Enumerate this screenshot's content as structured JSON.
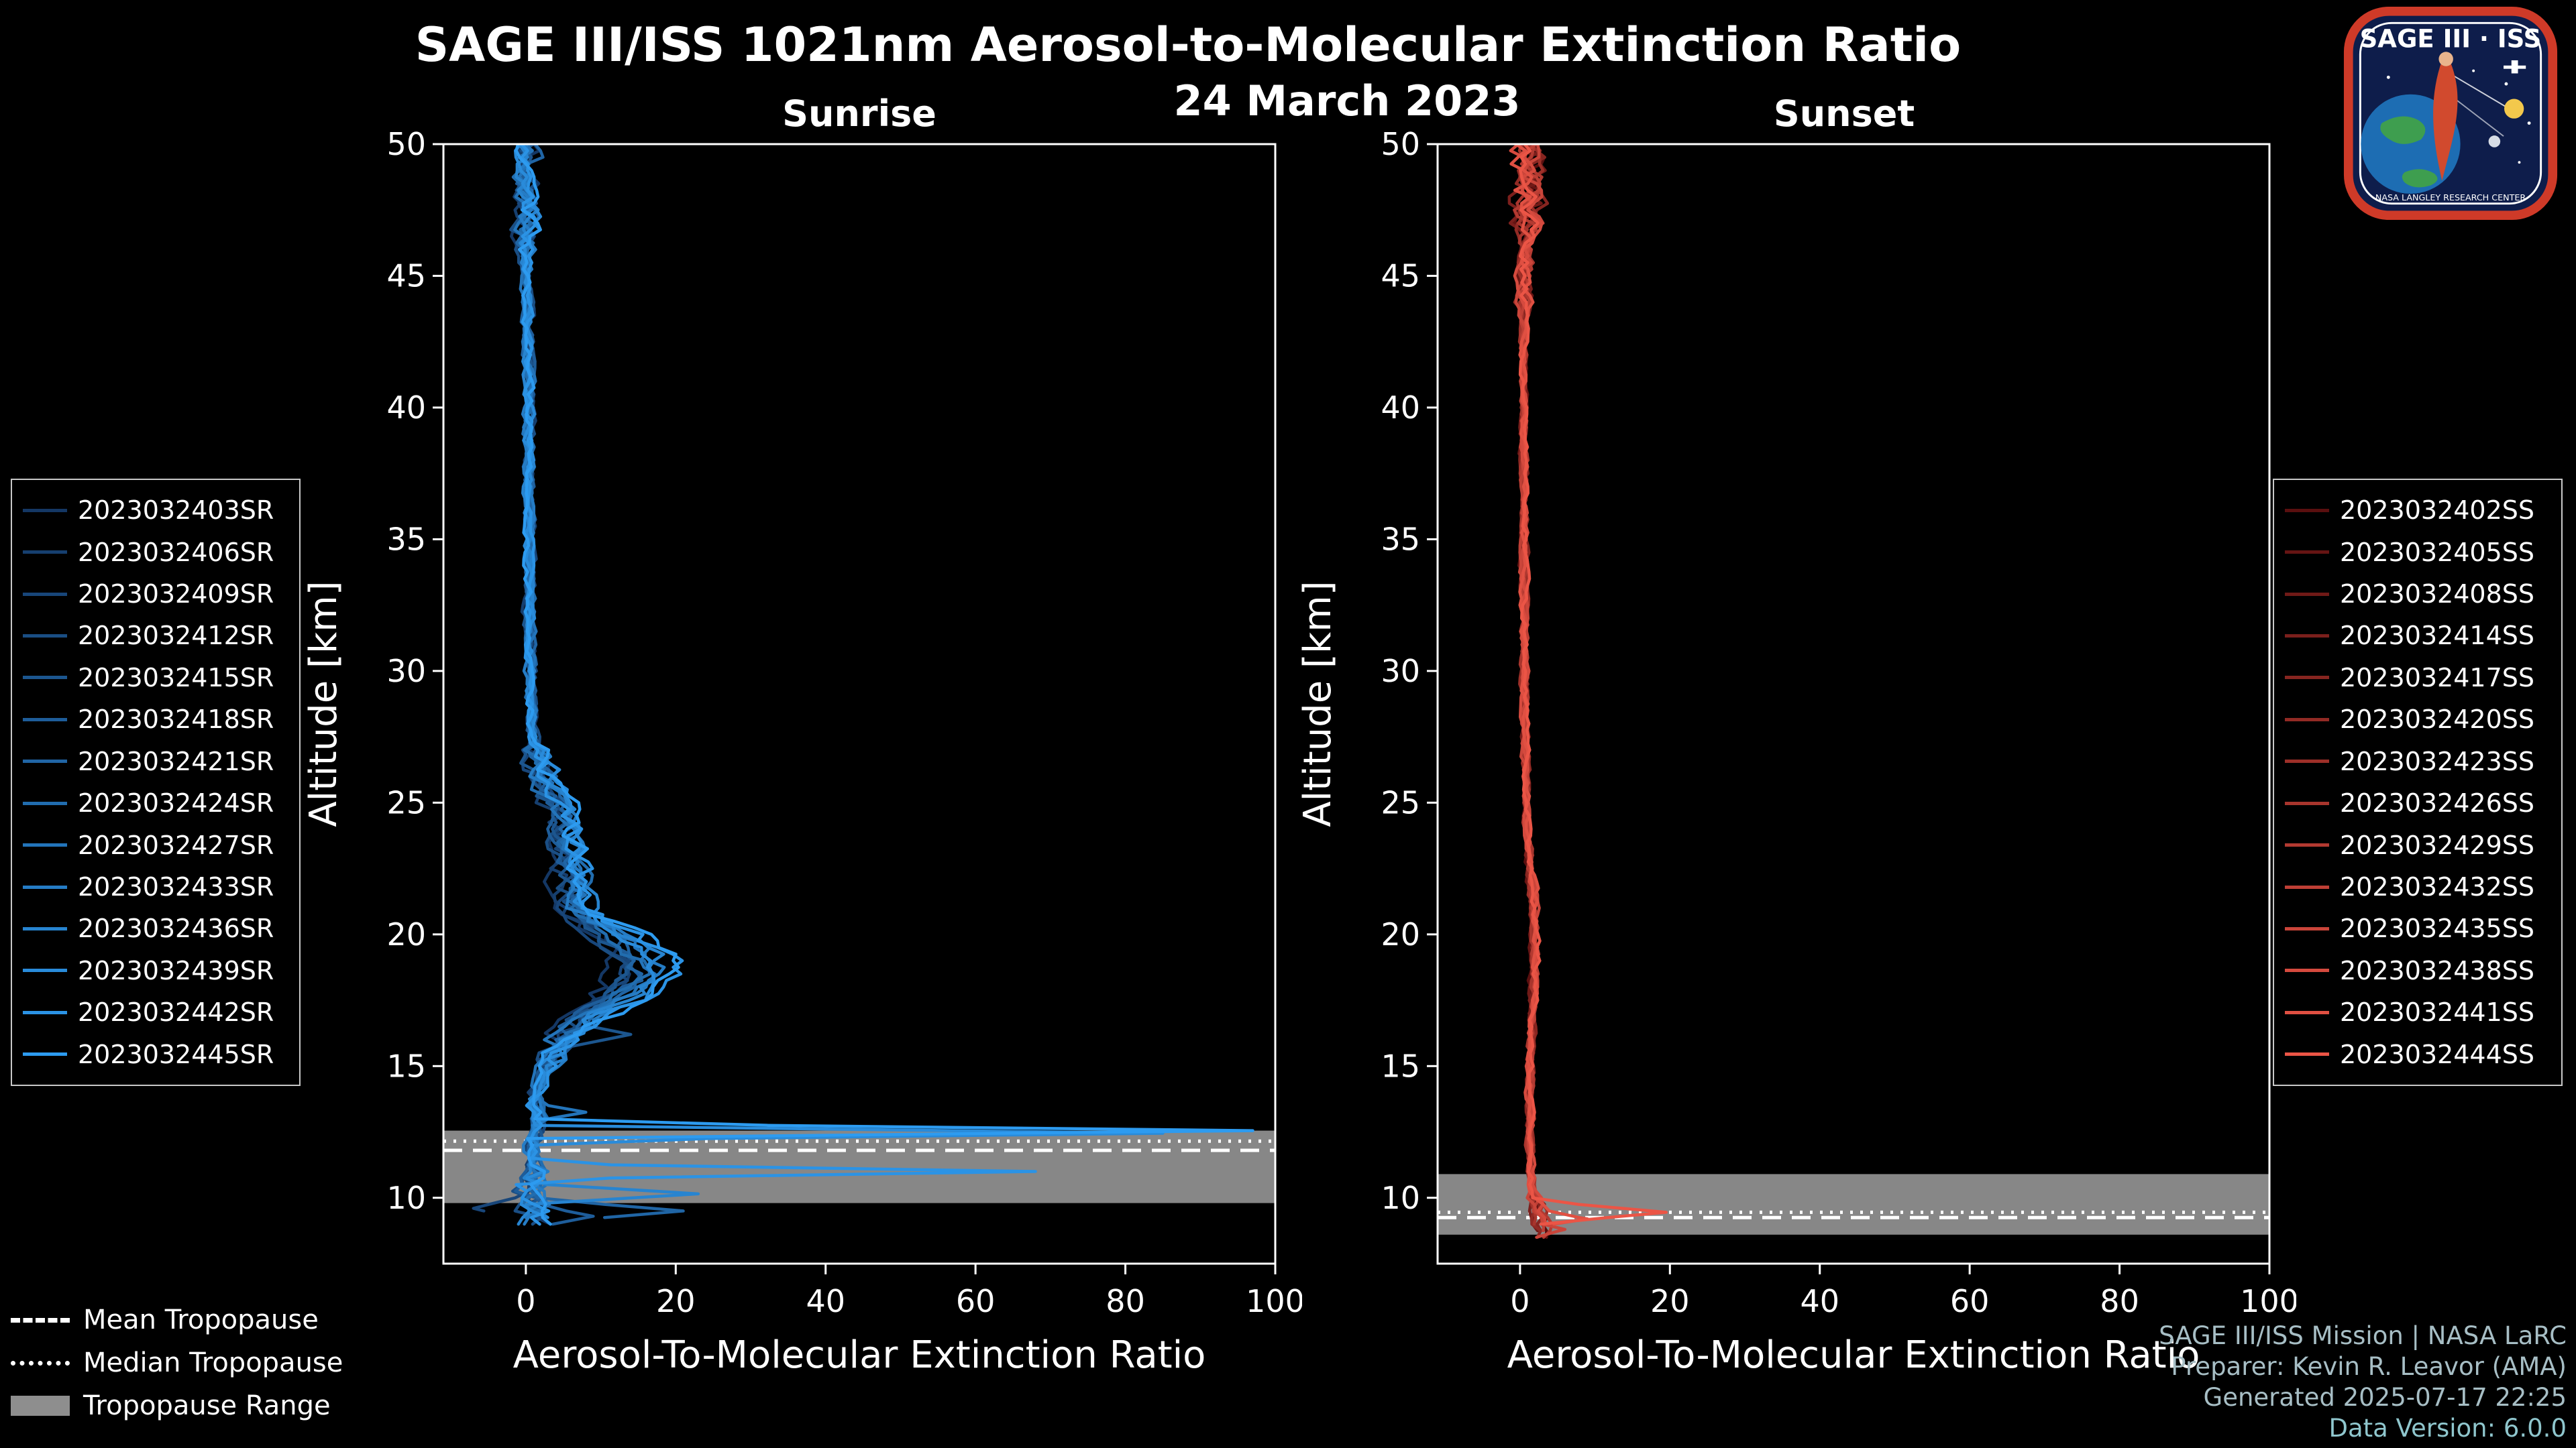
{
  "header": {
    "title": "SAGE III/ISS 1021nm Aerosol-to-Molecular Extinction Ratio",
    "date": "24 March 2023"
  },
  "panels": [
    {
      "title": "Sunrise"
    },
    {
      "title": "Sunset"
    }
  ],
  "legends": [
    {
      "name": "sunrise",
      "items": [
        {
          "label": "2023032403SR",
          "color": "#143764"
        },
        {
          "label": "2023032406SR",
          "color": "#163F6F"
        },
        {
          "label": "2023032409SR",
          "color": "#18467A"
        },
        {
          "label": "2023032412SR",
          "color": "#1A4E84"
        },
        {
          "label": "2023032415SR",
          "color": "#1C568F"
        },
        {
          "label": "2023032418SR",
          "color": "#1E5D9A"
        },
        {
          "label": "2023032421SR",
          "color": "#2065A5"
        },
        {
          "label": "2023032424SR",
          "color": "#216DAF"
        },
        {
          "label": "2023032427SR",
          "color": "#2374BA"
        },
        {
          "label": "2023032433SR",
          "color": "#257CC5"
        },
        {
          "label": "2023032436SR",
          "color": "#2784D0"
        },
        {
          "label": "2023032439SR",
          "color": "#298BDA"
        },
        {
          "label": "2023032442SR",
          "color": "#2B93E5"
        },
        {
          "label": "2023032445SR",
          "color": "#2D9BF0"
        }
      ]
    },
    {
      "name": "sunset",
      "items": [
        {
          "label": "2023032402SS",
          "color": "#5A0F0F"
        },
        {
          "label": "2023032405SS",
          "color": "#651413"
        },
        {
          "label": "2023032408SS",
          "color": "#701A17"
        },
        {
          "label": "2023032414SS",
          "color": "#7B1F1C"
        },
        {
          "label": "2023032417SS",
          "color": "#872520"
        },
        {
          "label": "2023032420SS",
          "color": "#922A24"
        },
        {
          "label": "2023032423SS",
          "color": "#9D2F28"
        },
        {
          "label": "2023032426SS",
          "color": "#A8352D"
        },
        {
          "label": "2023032429SS",
          "color": "#B33A31"
        },
        {
          "label": "2023032432SS",
          "color": "#BE3F35"
        },
        {
          "label": "2023032435SS",
          "color": "#CA453A"
        },
        {
          "label": "2023032438SS",
          "color": "#D54A3E"
        },
        {
          "label": "2023032441SS",
          "color": "#E05042"
        },
        {
          "label": "2023032444SS",
          "color": "#EB5546"
        }
      ]
    }
  ],
  "tropopause_legend": {
    "mean_label": "Mean Tropopause",
    "median_label": "Median Tropopause",
    "range_label": "Tropopause Range"
  },
  "credits": {
    "line1": "SAGE III/ISS Mission | NASA LaRC",
    "line2": "Preparer: Kevin R. Leavor (AMA)",
    "line3": "Generated 2025-07-17 22:25",
    "line4": "Data Version: 6.0.0"
  },
  "logo": {
    "title": "SAGE III · ISS",
    "ring_text": "NASA LANGLEY RESEARCH CENTER"
  },
  "chart_data": [
    {
      "type": "line",
      "panel": "Sunrise",
      "xlabel": "Aerosol-To-Molecular Extinction Ratio",
      "ylabel": "Altitude [km]",
      "xlim": [
        -11,
        100
      ],
      "ylim": [
        7.5,
        50
      ],
      "xticks": [
        0,
        20,
        40,
        60,
        80,
        100
      ],
      "yticks": [
        10,
        15,
        20,
        25,
        30,
        35,
        40,
        45,
        50
      ],
      "grid": false,
      "legend_position": "outside-left",
      "series": [
        "2023032403SR",
        "2023032406SR",
        "2023032409SR",
        "2023032412SR",
        "2023032415SR",
        "2023032418SR",
        "2023032421SR",
        "2023032424SR",
        "2023032427SR",
        "2023032433SR",
        "2023032436SR",
        "2023032439SR",
        "2023032442SR",
        "2023032445SR"
      ],
      "alt_range": [
        8.8,
        50
      ],
      "profile_alt": [
        8.8,
        9.0,
        9.5,
        10.0,
        10.5,
        11.0,
        11.5,
        12.0,
        12.5,
        13.0,
        13.5,
        14.0,
        15.0,
        15.5,
        16.0,
        16.5,
        17.0,
        17.5,
        18.0,
        18.5,
        19.0,
        19.5,
        20.0,
        20.5,
        21.0,
        22.0,
        23.0,
        24.0,
        25.0,
        26.0,
        27.0,
        28.0,
        30.0,
        32.0,
        34.0,
        36.0,
        38.0,
        40.0,
        42.0,
        44.0,
        46.0,
        48.0,
        50.0
      ],
      "profile_ratio": [
        2.5,
        2.0,
        1.0,
        0.5,
        0.5,
        0.8,
        0.8,
        1.0,
        1.5,
        1.5,
        1.2,
        1.5,
        2.5,
        3.5,
        5.0,
        7.0,
        9.0,
        12.0,
        14.5,
        16.0,
        15.5,
        14.0,
        12.0,
        9.0,
        7.0,
        6.5,
        6.0,
        5.0,
        4.0,
        2.5,
        1.2,
        0.8,
        0.6,
        0.5,
        0.5,
        0.4,
        0.4,
        0.5,
        0.3,
        0.3,
        0.0,
        0.0,
        0.0
      ],
      "bulge": {
        "min": 14,
        "max": 27,
        "from": 0.75,
        "to": 1.25
      },
      "noise_base": 0.55,
      "noise_regions": [
        {
          "min": 46,
          "max": 50.1,
          "amp": 1.3
        },
        {
          "min": 15,
          "max": 27,
          "amp": 1.5
        },
        {
          "min": 11,
          "max": 14,
          "amp": 0.9
        },
        {
          "min": 8.7,
          "max": 11,
          "amp": 2.0
        }
      ],
      "spikes": [
        {
          "s": 13,
          "alt": 12.55,
          "v": 97,
          "w": 0.3
        },
        {
          "s": 11,
          "alt": 12.45,
          "v": 85,
          "w": 0.28
        },
        {
          "s": 12,
          "alt": 11.0,
          "v": 68,
          "w": 0.3
        },
        {
          "s": 10,
          "alt": 10.15,
          "v": 23,
          "w": 0.4
        },
        {
          "s": 6,
          "alt": 9.5,
          "v": 21,
          "w": 0.5
        },
        {
          "s": 8,
          "alt": 13.25,
          "v": 8,
          "w": 0.4
        },
        {
          "s": 5,
          "alt": 9.3,
          "v": 9,
          "w": 0.5
        },
        {
          "s": 4,
          "alt": 16.2,
          "v": 14,
          "w": 0.8
        },
        {
          "s": 2,
          "alt": 9.6,
          "v": -7,
          "w": 0.5
        }
      ],
      "tropopause": {
        "mean": 11.8,
        "median": 12.15,
        "range": [
          9.8,
          12.55
        ]
      }
    },
    {
      "type": "line",
      "panel": "Sunset",
      "xlabel": "Aerosol-To-Molecular Extinction Ratio",
      "ylabel": "Altitude [km]",
      "xlim": [
        -11,
        100
      ],
      "ylim": [
        7.5,
        50
      ],
      "xticks": [
        0,
        20,
        40,
        60,
        80,
        100
      ],
      "yticks": [
        10,
        15,
        20,
        25,
        30,
        35,
        40,
        45,
        50
      ],
      "grid": false,
      "legend_position": "outside-right",
      "series": [
        "2023032402SS",
        "2023032405SS",
        "2023032408SS",
        "2023032414SS",
        "2023032417SS",
        "2023032420SS",
        "2023032423SS",
        "2023032426SS",
        "2023032429SS",
        "2023032432SS",
        "2023032435SS",
        "2023032438SS",
        "2023032441SS",
        "2023032444SS"
      ],
      "alt_range": [
        8.3,
        50
      ],
      "profile_alt": [
        8.3,
        8.5,
        9.0,
        9.5,
        10.0,
        10.5,
        11.0,
        12.0,
        14.0,
        16.0,
        18.0,
        19.0,
        20.0,
        21.0,
        22.0,
        24.0,
        26.0,
        28.0,
        30.0,
        34.0,
        38.0,
        42.0,
        46.0,
        48.0,
        49.0,
        50.0
      ],
      "profile_ratio": [
        2.5,
        2.5,
        3.0,
        2.5,
        1.8,
        1.6,
        1.5,
        1.3,
        1.3,
        1.5,
        1.8,
        2.0,
        2.0,
        1.8,
        1.5,
        1.0,
        0.8,
        0.7,
        0.6,
        0.5,
        0.5,
        0.5,
        0.8,
        0.8,
        1.2,
        1.0
      ],
      "bulge": {
        "min": 17,
        "max": 23,
        "from": 0.85,
        "to": 1.15
      },
      "noise_base": 0.4,
      "noise_regions": [
        {
          "min": 47,
          "max": 50.1,
          "amp": 1.7
        },
        {
          "min": 44,
          "max": 47,
          "amp": 0.9
        },
        {
          "min": 8.2,
          "max": 10,
          "amp": 0.9
        }
      ],
      "spikes": [
        {
          "s": 13,
          "alt": 9.45,
          "v": 19.5,
          "w": 0.5
        },
        {
          "s": 12,
          "alt": 9.2,
          "v": 9,
          "w": 0.4
        },
        {
          "s": 10,
          "alt": 8.8,
          "v": 6,
          "w": 0.4
        }
      ],
      "tropopause": {
        "mean": 9.25,
        "median": 9.45,
        "range": [
          8.6,
          10.9
        ]
      }
    }
  ]
}
